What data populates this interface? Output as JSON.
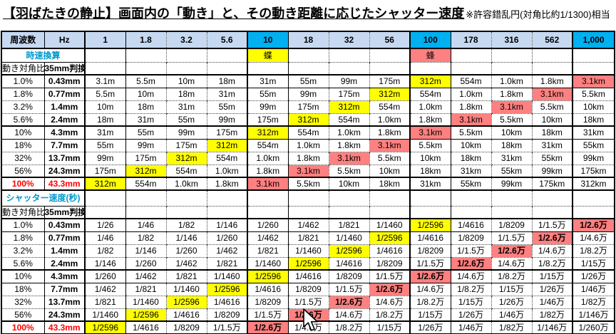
{
  "title": {
    "main": "【羽ばたきの静止】画面内の「動き」と、その動き距離に応じたシャッター速度",
    "note": "※許容錯乱円(対角比約1/1300)相当"
  },
  "header": {
    "freq_label": "周波数",
    "unit_label": "Hz",
    "columns": [
      "1",
      "1.8",
      "3.2",
      "5.6",
      "10",
      "18",
      "32",
      "56",
      "100",
      "178",
      "316",
      "562",
      "1,000"
    ],
    "highlighted_column_indices": [
      4,
      8,
      12
    ]
  },
  "speed_conversion_row": {
    "label": "時速換算",
    "markers": [
      {
        "col_index": 4,
        "text": "蝶",
        "bg": "yellow"
      },
      {
        "col_index": 8,
        "text": "蜂",
        "bg": "pink"
      }
    ]
  },
  "subheader": {
    "ratio_label": "動き対角比",
    "equiv_label": "35mm判換算"
  },
  "row_labels": {
    "percent": [
      "1.0%",
      "1.8%",
      "3.2%",
      "5.6%",
      "10%",
      "18%",
      "32%",
      "56%",
      "100%"
    ],
    "mm": [
      "0.43mm",
      "0.77mm",
      "1.4mm",
      "2.4mm",
      "4.3mm",
      "7.7mm",
      "13.7mm",
      "24.3mm",
      "43.3mm"
    ]
  },
  "distance_table": {
    "rows": [
      [
        "3.1m",
        "5.5m",
        "10m",
        "18m",
        "31m",
        "55m",
        "99m",
        "175m",
        "312m",
        "554m",
        "1.0km",
        "1.8km",
        "3.1km"
      ],
      [
        "5.5m",
        "10m",
        "18m",
        "31m",
        "55m",
        "99m",
        "175m",
        "312m",
        "554m",
        "1.0km",
        "1.8km",
        "3.1km",
        "5.5km"
      ],
      [
        "10m",
        "18m",
        "31m",
        "55m",
        "99m",
        "175m",
        "312m",
        "554m",
        "1.0km",
        "1.8km",
        "3.1km",
        "5.5km",
        "10km"
      ],
      [
        "18m",
        "31m",
        "55m",
        "99m",
        "175m",
        "312m",
        "554m",
        "1.0km",
        "1.8km",
        "3.1km",
        "5.5km",
        "10km",
        "18km"
      ],
      [
        "31m",
        "55m",
        "99m",
        "175m",
        "312m",
        "554m",
        "1.0km",
        "1.8km",
        "3.1km",
        "5.5km",
        "10km",
        "18km",
        "31km"
      ],
      [
        "55m",
        "99m",
        "175m",
        "312m",
        "554m",
        "1.0km",
        "1.8km",
        "3.1km",
        "5.5km",
        "10km",
        "18km",
        "31km",
        "55km"
      ],
      [
        "99m",
        "175m",
        "312m",
        "554m",
        "1.0km",
        "1.8km",
        "3.1km",
        "5.5km",
        "10km",
        "18km",
        "31km",
        "55km",
        "99km"
      ],
      [
        "175m",
        "312m",
        "554m",
        "1.0km",
        "1.8km",
        "3.1km",
        "5.5km",
        "10km",
        "18km",
        "31km",
        "55km",
        "99km",
        "175km"
      ],
      [
        "312m",
        "554m",
        "1.0km",
        "1.8km",
        "3.1km",
        "5.5km",
        "10km",
        "18km",
        "31km",
        "55km",
        "99km",
        "175km",
        "312km"
      ]
    ]
  },
  "shutter_section_label": "シャッター速度(秒)",
  "shutter_table": {
    "rows": [
      [
        "1/26",
        "1/46",
        "1/82",
        "1/146",
        "1/260",
        "1/462",
        "1/821",
        "1/1460",
        "1/2596",
        "1/4616",
        "1/8209",
        "1/1.5万",
        "1/2.6万"
      ],
      [
        "1/46",
        "1/82",
        "1/146",
        "1/260",
        "1/462",
        "1/821",
        "1/1460",
        "1/2596",
        "1/4616",
        "1/8209",
        "1/1.5万",
        "1/2.6万",
        "1/4.6万"
      ],
      [
        "1/82",
        "1/146",
        "1/260",
        "1/462",
        "1/821",
        "1/1460",
        "1/2596",
        "1/4616",
        "1/8209",
        "1/1.5万",
        "1/2.6万",
        "1/4.6万",
        "1/8.2万"
      ],
      [
        "1/146",
        "1/260",
        "1/462",
        "1/821",
        "1/1460",
        "1/2596",
        "1/4616",
        "1/8209",
        "1/1.5万",
        "1/2.6万",
        "1/4.6万",
        "1/8.2万",
        "1/15万"
      ],
      [
        "1/260",
        "1/462",
        "1/821",
        "1/1460",
        "1/2596",
        "1/4616",
        "1/8209",
        "1/1.5万",
        "1/2.6万",
        "1/4.6万",
        "1/8.2万",
        "1/15万",
        "1/26万"
      ],
      [
        "1/462",
        "1/821",
        "1/1460",
        "1/2596",
        "1/4616",
        "1/8209",
        "1/1.5万",
        "1/2.6万",
        "1/4.6万",
        "1/8.2万",
        "1/15万",
        "1/26万",
        "1/46万"
      ],
      [
        "1/821",
        "1/1460",
        "1/2596",
        "1/4616",
        "1/8209",
        "1/1.5万",
        "1/2.6万",
        "1/4.6万",
        "1/8.2万",
        "1/15万",
        "1/26万",
        "1/46万",
        "1/82万"
      ],
      [
        "1/1460",
        "1/2596",
        "1/4616",
        "1/8209",
        "1/1.5万",
        "1/2.6万",
        "1/4.6万",
        "1/8.2万",
        "1/15万",
        "1/26万",
        "1/46万",
        "1/82万",
        "1/146万"
      ],
      [
        "1/2596",
        "1/4616",
        "1/8209",
        "1/1.5万",
        "1/2.6万",
        "1/4.6万",
        "1/8.2万",
        "1/15万",
        "1/26万",
        "1/46万",
        "1/82万",
        "1/146万",
        "1/260万"
      ]
    ]
  },
  "highlights": {
    "yellow_values": [
      "312m",
      "1/2596"
    ],
    "pink_values": [
      "3.1km",
      "1/2.6万"
    ],
    "pink_bold_values": [
      "1/2.6万"
    ]
  },
  "colors": {
    "header_bg": "#c6d9f1",
    "header_highlight_bg": "#00b0f0",
    "yellow": "#ffff00",
    "pink": "#ff8080",
    "accent_text": "#0099cc",
    "warning_text": "#ff0000"
  }
}
